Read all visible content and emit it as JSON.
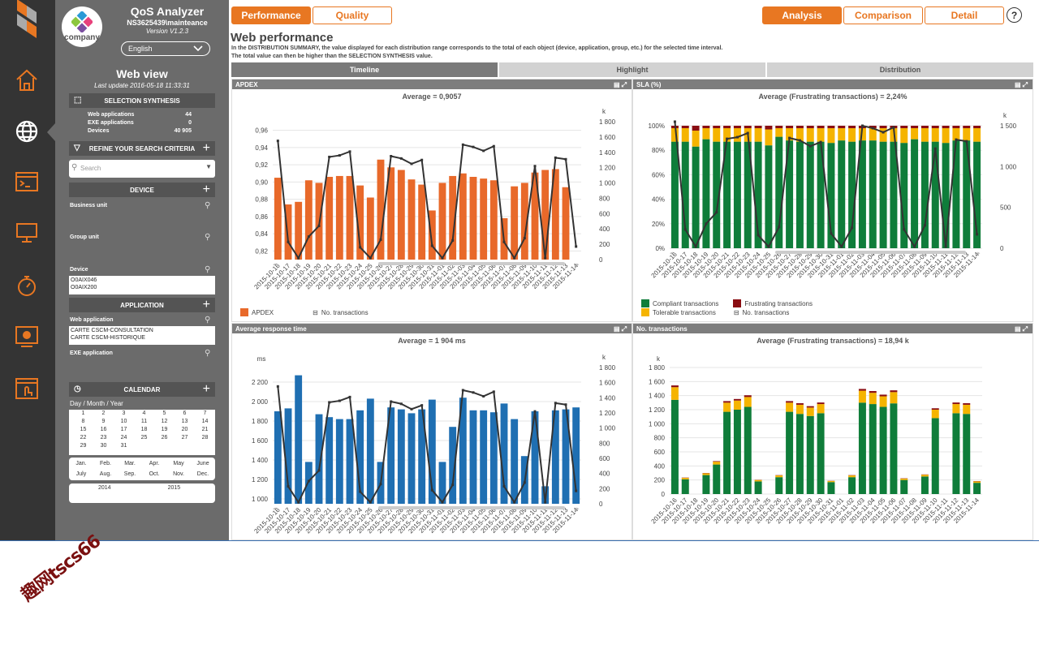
{
  "app": {
    "logo_text": "company",
    "title": "QoS Analyzer",
    "user": "NS3625439\\mainteance",
    "version": "Version V1.2.3",
    "language": "English",
    "view_title": "Web view",
    "last_update": "Last update 2016-05-18 11:33:31"
  },
  "iconbar": [
    "home-icon",
    "globe-icon",
    "terminal-icon",
    "monitor-icon",
    "stopwatch-icon",
    "settings-screen-icon",
    "touch-window-icon"
  ],
  "sidebar": {
    "selection_synthesis": "SELECTION SYNTHESIS",
    "synthesis_rows": [
      {
        "label": "Web applications",
        "value": "44"
      },
      {
        "label": "EXE applications",
        "value": "0"
      },
      {
        "label": "Devices",
        "value": "40 905"
      }
    ],
    "refine": "REFINE YOUR SEARCH CRITERIA",
    "search_placeholder": "Search",
    "device_section": "DEVICE",
    "business_unit": "Business unit",
    "group_unit": "Group unit",
    "device": "Device",
    "device_list": [
      "O0AIX046",
      "O0AIX200"
    ],
    "application_section": "APPLICATION",
    "web_application": "Web application",
    "web_app_list": [
      "CARTE CSCM-CONSULTATION",
      "CARTE CSCM-HISTORIQUE"
    ],
    "exe_application": "EXE application",
    "calendar_section": "CALENDAR",
    "calendar_format": "Day / Month / Year",
    "days": [
      "1",
      "2",
      "3",
      "4",
      "5",
      "6",
      "7",
      "8",
      "9",
      "10",
      "11",
      "12",
      "13",
      "14",
      "15",
      "16",
      "17",
      "18",
      "19",
      "20",
      "21",
      "22",
      "23",
      "24",
      "25",
      "26",
      "27",
      "28",
      "29",
      "30",
      "31"
    ],
    "months": [
      "Jan.",
      "Feb.",
      "Mar.",
      "Apr.",
      "May",
      "June",
      "July",
      "Aug.",
      "Sep.",
      "Oct.",
      "Nov.",
      "Dec."
    ],
    "years": [
      "2014",
      "2015"
    ]
  },
  "toolbar": {
    "performance": "Performance",
    "quality": "Quality",
    "analysis": "Analysis",
    "comparison": "Comparison",
    "detail": "Detail",
    "help": "?"
  },
  "page": {
    "title": "Web performance",
    "desc1": "In the DISTRIBUTION SUMMARY, the value displayed for each distribution range corresponds to the total of each object (device, application, group, etc.) for the selected time interval.",
    "desc2": "The total value can then be higher than the SELECTION SYNTHESIS value.",
    "tabs": [
      "Timeline",
      "Highlight",
      "Distribution"
    ]
  },
  "colors": {
    "orange": "#e87722",
    "apdex_bar": "#e8692a",
    "blue": "#1f6fb2",
    "green": "#0f7d3a",
    "yellow": "#f5b400",
    "darkred": "#8a0d12",
    "line": "#333333"
  },
  "panels": {
    "apdex_title": "APDEX",
    "apdex_avg": "Average = 0,9057",
    "apdex_legend_bar": "APDEX",
    "no_transactions": "No. transactions",
    "sla_title": "SLA (%)",
    "sla_avg": "Average (Frustrating transactions) = 2,24%",
    "compliant": "Compliant transactions",
    "tolerable": "Tolerable transactions",
    "frustrating": "Frustrating transactions",
    "art_title": "Average response time",
    "art_avg": "Average = 1 904 ms",
    "nt_title": "No. transactions",
    "nt_avg": "Average (Frustrating transactions) = 18,94 k"
  },
  "chart_data": [
    {
      "type": "bar",
      "title": "APDEX",
      "categories": [
        "2015-10-16",
        "2015-10-17",
        "2015-10-18",
        "2015-10-19",
        "2015-10-20",
        "2015-10-21",
        "2015-10-22",
        "2015-10-23",
        "2015-10-24",
        "2015-10-25",
        "2015-10-26",
        "2015-10-27",
        "2015-10-28",
        "2015-10-29",
        "2015-10-30",
        "2015-10-31",
        "2015-11-01",
        "2015-11-02",
        "2015-11-03",
        "2015-11-04",
        "2015-11-05",
        "2015-11-06",
        "2015-11-07",
        "2015-11-08",
        "2015-11-09",
        "2015-11-10",
        "2015-11-11",
        "2015-11-12",
        "2015-11-13",
        "2015-11-14"
      ],
      "series": [
        {
          "name": "APDEX",
          "values": [
            0.905,
            0.874,
            0.877,
            0.902,
            0.899,
            0.906,
            0.907,
            0.907,
            0.896,
            0.882,
            0.926,
            0.917,
            0.914,
            0.903,
            0.897,
            0.867,
            0.899,
            0.907,
            0.91,
            0.906,
            0.904,
            0.902,
            0.858,
            0.895,
            0.899,
            0.911,
            0.914,
            0.915,
            0.894,
            0.0
          ]
        },
        {
          "name": "No. transactions",
          "axis": "right",
          "values": [
            1550,
            230,
            20,
            300,
            440,
            1340,
            1360,
            1410,
            160,
            20,
            260,
            1350,
            1320,
            1250,
            1300,
            180,
            20,
            250,
            1500,
            1470,
            1420,
            1480,
            230,
            20,
            280,
            1220,
            20,
            1330,
            1310,
            170
          ]
        }
      ],
      "ylim": [
        0.81,
        0.97
      ],
      "yticks": [
        "0,82",
        "0,84",
        "0,86",
        "0,88",
        "0,90",
        "0,92",
        "0,94",
        "0,96"
      ],
      "y2label": "k",
      "y2ticks": [
        "0",
        "200",
        "400",
        "600",
        "800",
        "1 000",
        "1 200",
        "1 400",
        "1 600",
        "1 800"
      ]
    },
    {
      "type": "bar",
      "title": "SLA (%)",
      "stacked": true,
      "categories": [
        "2015-10-16",
        "2015-10-17",
        "2015-10-18",
        "2015-10-19",
        "2015-10-20",
        "2015-10-21",
        "2015-10-22",
        "2015-10-23",
        "2015-10-24",
        "2015-10-25",
        "2015-10-26",
        "2015-10-27",
        "2015-10-28",
        "2015-10-29",
        "2015-10-30",
        "2015-10-31",
        "2015-11-01",
        "2015-11-02",
        "2015-11-03",
        "2015-11-04",
        "2015-11-05",
        "2015-11-06",
        "2015-11-07",
        "2015-11-08",
        "2015-11-09",
        "2015-11-10",
        "2015-11-11",
        "2015-11-12",
        "2015-11-13",
        "2015-11-14"
      ],
      "series": [
        {
          "name": "Compliant transactions",
          "values": [
            87,
            87,
            83,
            89,
            87,
            87,
            87,
            87,
            87,
            84,
            91,
            88,
            87,
            87,
            87,
            86,
            88,
            87,
            88,
            88,
            87,
            87,
            86,
            89,
            87,
            87,
            86,
            88,
            88,
            87
          ]
        },
        {
          "name": "Tolerable transactions",
          "values": [
            11,
            11,
            13,
            9,
            11,
            11,
            11,
            11,
            11,
            13,
            7,
            10,
            11,
            11,
            11,
            12,
            10,
            11,
            10,
            10,
            11,
            11,
            12,
            9,
            11,
            11,
            12,
            10,
            10,
            11
          ]
        },
        {
          "name": "Frustrating transactions",
          "values": [
            2,
            2,
            4,
            2,
            2,
            2,
            2,
            2,
            2,
            3,
            2,
            2,
            2,
            2,
            2,
            2,
            2,
            2,
            2,
            2,
            2,
            2,
            2,
            2,
            2,
            2,
            2,
            2,
            2,
            2
          ]
        },
        {
          "name": "No. transactions",
          "axis": "right",
          "values": [
            1550,
            230,
            20,
            300,
            440,
            1340,
            1360,
            1410,
            160,
            20,
            260,
            1350,
            1320,
            1250,
            1300,
            180,
            20,
            250,
            1500,
            1470,
            1420,
            1480,
            230,
            20,
            280,
            1220,
            20,
            1330,
            1310,
            170
          ]
        }
      ],
      "yticks": [
        "0%",
        "20%",
        "40%",
        "60%",
        "80%",
        "100%"
      ],
      "ylim": [
        0,
        100
      ],
      "y2label": "k",
      "y2ticks": [
        "0",
        "500",
        "1 000",
        "1 500"
      ]
    },
    {
      "type": "bar",
      "title": "Average response time",
      "ylabel": "ms",
      "categories": [
        "2015-10-16",
        "2015-10-17",
        "2015-10-18",
        "2015-10-19",
        "2015-10-20",
        "2015-10-21",
        "2015-10-22",
        "2015-10-23",
        "2015-10-24",
        "2015-10-25",
        "2015-10-26",
        "2015-10-27",
        "2015-10-28",
        "2015-10-29",
        "2015-10-30",
        "2015-10-31",
        "2015-11-01",
        "2015-11-02",
        "2015-11-03",
        "2015-11-04",
        "2015-11-05",
        "2015-11-06",
        "2015-11-07",
        "2015-11-08",
        "2015-11-09",
        "2015-11-10",
        "2015-11-11",
        "2015-11-12",
        "2015-11-13",
        "2015-11-14"
      ],
      "series": [
        {
          "name": "Average response time",
          "values": [
            1900,
            1930,
            2270,
            1380,
            1870,
            1840,
            1820,
            1820,
            1910,
            2030,
            1380,
            1940,
            1920,
            1880,
            1920,
            2020,
            1380,
            1740,
            2040,
            1910,
            1910,
            1890,
            1980,
            1820,
            1440,
            1900,
            1130,
            1910,
            1920,
            1940
          ]
        },
        {
          "name": "No. transactions",
          "axis": "right",
          "values": [
            1550,
            230,
            20,
            300,
            440,
            1340,
            1360,
            1410,
            160,
            20,
            260,
            1350,
            1320,
            1250,
            1300,
            180,
            20,
            250,
            1500,
            1470,
            1420,
            1480,
            230,
            20,
            280,
            1220,
            20,
            1330,
            1310,
            170
          ]
        }
      ],
      "ylim": [
        950,
        2350
      ],
      "yticks": [
        "1 000",
        "1 200",
        "1 400",
        "1 600",
        "1 800",
        "2 000",
        "2 200"
      ],
      "y2label": "k",
      "y2ticks": [
        "0",
        "200",
        "400",
        "600",
        "800",
        "1 000",
        "1 200",
        "1 400",
        "1 600",
        "1 800"
      ]
    },
    {
      "type": "bar",
      "title": "No. transactions",
      "stacked": true,
      "ylabel": "k",
      "categories": [
        "2015-10-16",
        "2015-10-17",
        "2015-10-18",
        "2015-10-19",
        "2015-10-20",
        "2015-10-21",
        "2015-10-22",
        "2015-10-23",
        "2015-10-24",
        "2015-10-25",
        "2015-10-26",
        "2015-10-27",
        "2015-10-28",
        "2015-10-29",
        "2015-10-30",
        "2015-10-31",
        "2015-11-01",
        "2015-11-02",
        "2015-11-03",
        "2015-11-04",
        "2015-11-05",
        "2015-11-06",
        "2015-11-07",
        "2015-11-08",
        "2015-11-09",
        "2015-11-10",
        "2015-11-11",
        "2015-11-12",
        "2015-11-13",
        "2015-11-14"
      ],
      "series": [
        {
          "name": "Compliant",
          "values": [
            1340,
            210,
            0,
            270,
            420,
            1170,
            1200,
            1240,
            180,
            0,
            240,
            1170,
            1140,
            1110,
            1150,
            170,
            0,
            240,
            1300,
            1280,
            1240,
            1290,
            200,
            0,
            250,
            1080,
            0,
            1150,
            1140,
            160
          ]
        },
        {
          "name": "Tolerable",
          "values": [
            180,
            20,
            0,
            25,
            40,
            130,
            130,
            140,
            20,
            0,
            25,
            130,
            130,
            120,
            130,
            15,
            0,
            25,
            170,
            160,
            150,
            160,
            20,
            0,
            25,
            120,
            0,
            130,
            130,
            20
          ]
        },
        {
          "name": "Frustrating",
          "values": [
            25,
            4,
            0,
            4,
            8,
            22,
            22,
            25,
            3,
            0,
            4,
            22,
            22,
            20,
            22,
            3,
            0,
            4,
            25,
            25,
            24,
            25,
            4,
            0,
            4,
            20,
            0,
            22,
            22,
            4
          ]
        }
      ],
      "ylim": [
        0,
        1800
      ],
      "yticks": [
        "0",
        "200",
        "400",
        "600",
        "800",
        "1 000",
        "1 200",
        "1 400",
        "1 600",
        "1 800"
      ]
    }
  ],
  "watermark": "趣网tscs66"
}
